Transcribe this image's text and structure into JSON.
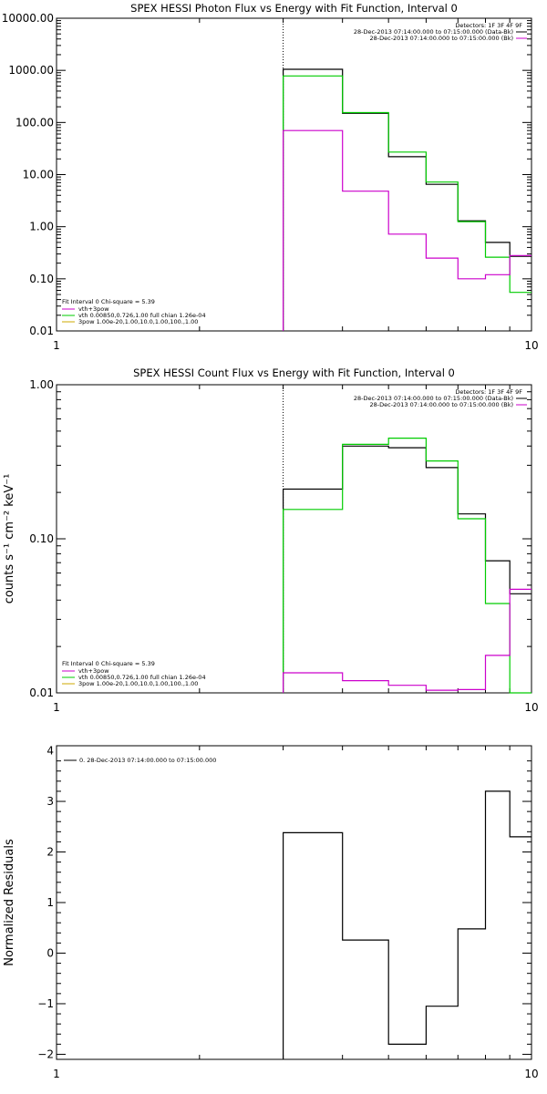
{
  "chart_data": [
    {
      "type": "line",
      "title": "SPEX HESSI Photon Flux vs Energy with Fit Function, Interval 0",
      "xlabel": "",
      "ylabel": "",
      "xscale": "log",
      "yscale": "log",
      "xlim": [
        1,
        10
      ],
      "ylim": [
        0.01,
        10000
      ],
      "xtick_labels": [
        "1",
        "10"
      ],
      "ytick_values": [
        0.01,
        0.1,
        1,
        10,
        100,
        1000,
        10000
      ],
      "ytick_labels": [
        "0.01",
        "0.10",
        "1.00",
        "10.00",
        "100.00",
        "1000.00",
        "10000.00"
      ],
      "vline_x": 3,
      "bin_edges": [
        3,
        4,
        5,
        6,
        7,
        8,
        9,
        10
      ],
      "series": [
        {
          "color": "#000000",
          "values": [
            1050,
            150,
            22,
            6.5,
            1.3,
            0.5,
            0.27
          ]
        },
        {
          "color": "#00cc00",
          "values": [
            780,
            155,
            27,
            7.2,
            1.25,
            0.26,
            0.055
          ]
        },
        {
          "color": "#cc00cc",
          "values": [
            70,
            4.8,
            0.72,
            0.25,
            0.1,
            0.12,
            0.28
          ]
        }
      ],
      "detectors_label": "Detectors: 1F 3F 4F 9F",
      "legend_top": [
        {
          "text": "28-Dec-2013 07:14:00.000 to 07:15:00.000 (Data-Bk)",
          "color": "#000000"
        },
        {
          "text": "28-Dec-2013 07:14:00.000 to 07:15:00.000 (Bk)",
          "color": "#cc00cc"
        }
      ],
      "fit_info": "Fit Interval 0   Chi-square = 5.39",
      "legend_bottom": [
        {
          "text": "vth+3pow",
          "color": "#cc00cc"
        },
        {
          "text": "vth 0.00850,0.726,1.00  full chian 1.26e-04",
          "color": "#00cc00"
        },
        {
          "text": "3pow 1.00e-20,1.00,10.0,1.00,100.,1.00",
          "color": "#ccaa00"
        }
      ]
    },
    {
      "type": "line",
      "title": "SPEX HESSI Count Flux vs Energy with Fit Function, Interval 0",
      "xlabel": "",
      "ylabel": "counts s⁻¹ cm⁻² keV⁻¹",
      "xscale": "log",
      "yscale": "log",
      "xlim": [
        1,
        10
      ],
      "ylim": [
        0.01,
        1
      ],
      "xtick_labels": [
        "1",
        "10"
      ],
      "ytick_values": [
        0.01,
        0.1,
        1
      ],
      "ytick_labels": [
        "0.01",
        "0.10",
        "1.00"
      ],
      "vline_x": 3,
      "bin_edges": [
        3,
        4,
        5,
        6,
        7,
        8,
        9,
        10
      ],
      "series": [
        {
          "color": "#000000",
          "values": [
            0.21,
            0.4,
            0.39,
            0.29,
            0.145,
            0.072,
            0.044
          ]
        },
        {
          "color": "#00cc00",
          "values": [
            0.155,
            0.41,
            0.45,
            0.32,
            0.135,
            0.038,
            0.0005
          ]
        },
        {
          "color": "#cc00cc",
          "values": [
            0.0135,
            0.012,
            0.0112,
            0.0104,
            0.0105,
            0.0175,
            0.047
          ]
        }
      ],
      "detectors_label": "Detectors: 1F 3F 4F 9F",
      "legend_top": [
        {
          "text": "28-Dec-2013 07:14:00.000 to 07:15:00.000 (Data-Bk)",
          "color": "#000000"
        },
        {
          "text": "28-Dec-2013 07:14:00.000 to 07:15:00.000 (Bk)",
          "color": "#cc00cc"
        }
      ],
      "fit_info": "Fit Interval 0   Chi-square = 5.39",
      "legend_bottom": [
        {
          "text": "vth+3pow",
          "color": "#cc00cc"
        },
        {
          "text": "vth 0.00850,0.726,1.00  full chian 1.26e-04",
          "color": "#00cc00"
        },
        {
          "text": "3pow 1.00e-20,1.00,10.0,1.00,100.,1.00",
          "color": "#ccaa00"
        }
      ]
    },
    {
      "type": "line",
      "title": "",
      "xlabel": "",
      "ylabel": "Normalized Residuals",
      "xscale": "log",
      "yscale": "linear",
      "xlim": [
        1,
        10
      ],
      "ylim": [
        -2.1,
        4.1
      ],
      "xtick_labels": [
        "1",
        "10"
      ],
      "ytick_values": [
        -2,
        -1,
        0,
        1,
        2,
        3,
        4
      ],
      "ytick_labels": [
        "−2",
        "−1",
        "0",
        "1",
        "2",
        "3",
        "4"
      ],
      "bin_edges": [
        3,
        4,
        5,
        6,
        7,
        8,
        9,
        10
      ],
      "series": [
        {
          "color": "#000000",
          "values": [
            2.38,
            0.26,
            -1.8,
            -1.05,
            0.48,
            3.2,
            2.3
          ]
        }
      ],
      "legend_top": [
        {
          "text": "0. 28-Dec-2013 07:14:00.000 to 07:15:00.000",
          "color": "#000000"
        }
      ]
    }
  ]
}
